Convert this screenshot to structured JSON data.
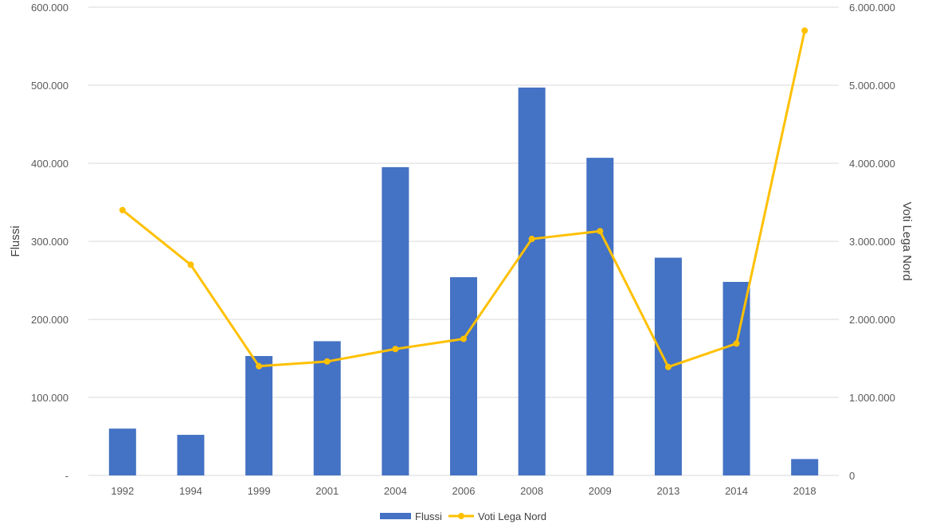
{
  "chart_data": {
    "type": "bar",
    "title": "",
    "categories": [
      "1992",
      "1994",
      "1999",
      "2001",
      "2004",
      "2006",
      "2008",
      "2009",
      "2013",
      "2014",
      "2018"
    ],
    "series": [
      {
        "name": "Flussi",
        "type": "bar",
        "axis": "left",
        "color": "#4472C4",
        "values": [
          60000,
          52000,
          153000,
          172000,
          395000,
          254000,
          497000,
          407000,
          279000,
          248000,
          21000
        ]
      },
      {
        "name": "Voti Lega Nord",
        "type": "line",
        "axis": "right",
        "color": "#FFC000",
        "values": [
          3400000,
          2700000,
          1400000,
          1460000,
          1620000,
          1750000,
          3030000,
          3130000,
          1390000,
          1690000,
          5700000
        ]
      }
    ],
    "ylabel_left": "Flussi",
    "ylabel_right": "Voti Lega Nord",
    "ylim_left": [
      0,
      600000
    ],
    "ylim_right": [
      0,
      6000000
    ],
    "yticks_left": [
      "-",
      "100.000",
      "200.000",
      "300.000",
      "400.000",
      "500.000",
      "600.000"
    ],
    "yticks_right": [
      "0",
      "1.000.000",
      "2.000.000",
      "3.000.000",
      "4.000.000",
      "5.000.000",
      "6.000.000"
    ],
    "grid": true,
    "legend_position": "bottom"
  }
}
